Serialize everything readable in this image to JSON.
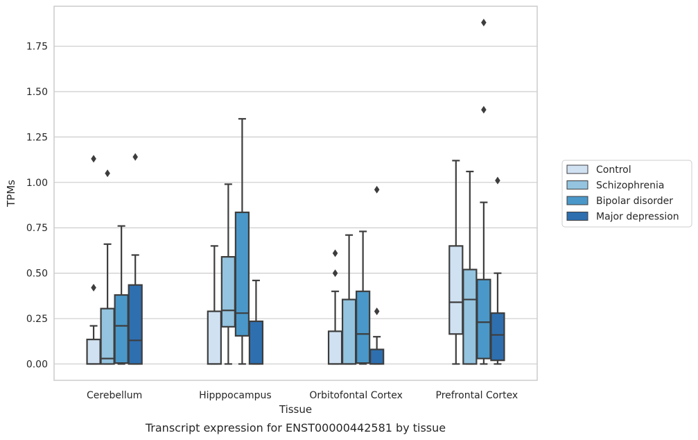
{
  "caption": "Transcript expression for ENST00000442581 by tissue",
  "chart_data": {
    "type": "box",
    "xlabel": "Tissue",
    "ylabel": "TPMs",
    "ylim": [
      -0.09,
      1.97
    ],
    "yticks": [
      "0.00",
      "0.25",
      "0.50",
      "0.75",
      "1.00",
      "1.25",
      "1.50",
      "1.75"
    ],
    "grid": "horizontal",
    "legend_position": "right",
    "categories": [
      "Cerebellum",
      "Hipppocampus",
      "Orbitofontal Cortex",
      "Prefrontal Cortex"
    ],
    "series": [
      {
        "name": "Control",
        "color": "#d0e1f2",
        "boxes": [
          {
            "whislo": 0.0,
            "q1": 0.0,
            "med": 0.0,
            "q3": 0.135,
            "whishi": 0.21,
            "fliers": [
              0.42,
              1.13
            ]
          },
          {
            "whislo": 0.0,
            "q1": 0.0,
            "med": 0.0,
            "q3": 0.29,
            "whishi": 0.65,
            "fliers": []
          },
          {
            "whislo": 0.0,
            "q1": 0.0,
            "med": 0.0,
            "q3": 0.18,
            "whishi": 0.4,
            "fliers": [
              0.5,
              0.61
            ]
          },
          {
            "whislo": 0.0,
            "q1": 0.165,
            "med": 0.34,
            "q3": 0.65,
            "whishi": 1.12,
            "fliers": []
          }
        ]
      },
      {
        "name": "Schizophrenia",
        "color": "#94c4df",
        "boxes": [
          {
            "whislo": 0.0,
            "q1": 0.0,
            "med": 0.03,
            "q3": 0.305,
            "whishi": 0.66,
            "fliers": [
              1.05
            ]
          },
          {
            "whislo": 0.0,
            "q1": 0.205,
            "med": 0.295,
            "q3": 0.59,
            "whishi": 0.99,
            "fliers": []
          },
          {
            "whislo": 0.0,
            "q1": 0.0,
            "med": 0.0,
            "q3": 0.355,
            "whishi": 0.71,
            "fliers": []
          },
          {
            "whislo": 0.0,
            "q1": 0.0,
            "med": 0.355,
            "q3": 0.52,
            "whishi": 1.06,
            "fliers": []
          }
        ]
      },
      {
        "name": "Bipolar disorder",
        "color": "#4a98c9",
        "boxes": [
          {
            "whislo": 0.0,
            "q1": 0.005,
            "med": 0.21,
            "q3": 0.38,
            "whishi": 0.76,
            "fliers": []
          },
          {
            "whislo": 0.0,
            "q1": 0.155,
            "med": 0.28,
            "q3": 0.835,
            "whishi": 1.35,
            "fliers": []
          },
          {
            "whislo": 0.0,
            "q1": 0.005,
            "med": 0.165,
            "q3": 0.4,
            "whishi": 0.73,
            "fliers": []
          },
          {
            "whislo": 0.0,
            "q1": 0.03,
            "med": 0.23,
            "q3": 0.465,
            "whishi": 0.89,
            "fliers": [
              1.4,
              1.88
            ]
          }
        ]
      },
      {
        "name": "Major depression",
        "color": "#2e6fb0",
        "boxes": [
          {
            "whislo": 0.0,
            "q1": 0.0,
            "med": 0.13,
            "q3": 0.435,
            "whishi": 0.6,
            "fliers": [
              1.14
            ]
          },
          {
            "whislo": 0.0,
            "q1": 0.0,
            "med": 0.0,
            "q3": 0.235,
            "whishi": 0.46,
            "fliers": []
          },
          {
            "whislo": 0.0,
            "q1": 0.0,
            "med": 0.0,
            "q3": 0.08,
            "whishi": 0.15,
            "fliers": [
              0.29,
              0.96
            ]
          },
          {
            "whislo": 0.0,
            "q1": 0.02,
            "med": 0.16,
            "q3": 0.28,
            "whishi": 0.5,
            "fliers": [
              1.01
            ]
          }
        ]
      }
    ]
  }
}
